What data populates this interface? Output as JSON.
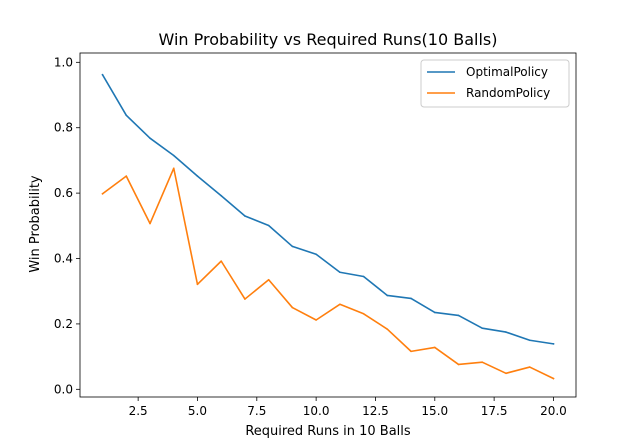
{
  "chart_data": {
    "type": "line",
    "title": "Win Probability vs Required Runs(10 Balls)",
    "xlabel": "Required Runs in 10 Balls",
    "ylabel": "Win Probability",
    "xlim": [
      0.05,
      20.95
    ],
    "ylim": [
      -0.0235,
      1.0285
    ],
    "xticks": [
      "2.5",
      "5.0",
      "7.5",
      "10.0",
      "12.5",
      "15.0",
      "17.5",
      "20.0"
    ],
    "xtick_values": [
      2.5,
      5.0,
      7.5,
      10.0,
      12.5,
      15.0,
      17.5,
      20.0
    ],
    "yticks": [
      "0.0",
      "0.2",
      "0.4",
      "0.6",
      "0.8",
      "1.0"
    ],
    "ytick_values": [
      0.0,
      0.2,
      0.4,
      0.6,
      0.8,
      1.0
    ],
    "grid": false,
    "legend_position": "top-right",
    "x": [
      1,
      2,
      3,
      4,
      5,
      6,
      7,
      8,
      9,
      10,
      11,
      12,
      13,
      14,
      15,
      16,
      17,
      18,
      19,
      20
    ],
    "series": [
      {
        "name": "OptimalPolicy",
        "color": "#1f77b4",
        "values": [
          0.962,
          0.838,
          0.768,
          0.715,
          0.652,
          0.592,
          0.53,
          0.501,
          0.437,
          0.413,
          0.358,
          0.345,
          0.287,
          0.278,
          0.235,
          0.226,
          0.187,
          0.175,
          0.15,
          0.139
        ]
      },
      {
        "name": "RandomPolicy",
        "color": "#ff7f0e",
        "values": [
          0.598,
          0.652,
          0.507,
          0.676,
          0.321,
          0.392,
          0.276,
          0.335,
          0.25,
          0.212,
          0.26,
          0.231,
          0.184,
          0.116,
          0.128,
          0.076,
          0.083,
          0.049,
          0.068,
          0.033
        ]
      }
    ]
  }
}
